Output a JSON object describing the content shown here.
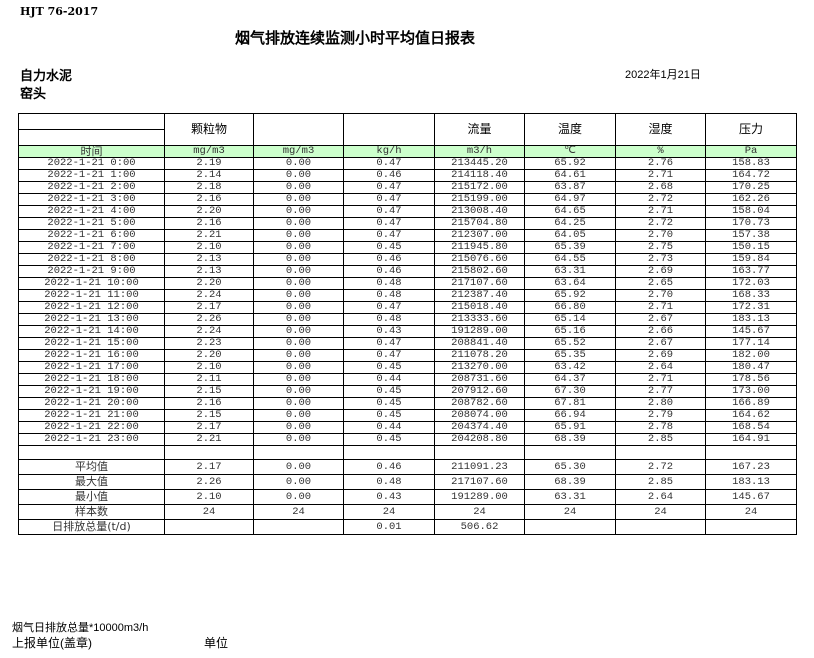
{
  "standard": "HJT 76-2017",
  "title": "烟气排放连续监测小时平均值日报表",
  "company": "自力水泥",
  "unit_name": "窑头",
  "date": "2022年1月21日",
  "table": {
    "headers": [
      "",
      "颗粒物",
      "",
      "",
      "流量",
      "温度",
      "湿度",
      "压力"
    ],
    "units": [
      "时间",
      "mg/m3",
      "mg/m3",
      "kg/h",
      "m3/h",
      "℃",
      "%",
      "Pa"
    ],
    "rows": [
      [
        "2022-1-21 0:00",
        "2.19",
        "0.00",
        "0.47",
        "213445.20",
        "65.92",
        "2.76",
        "158.83"
      ],
      [
        "2022-1-21 1:00",
        "2.14",
        "0.00",
        "0.46",
        "214118.40",
        "64.61",
        "2.71",
        "164.72"
      ],
      [
        "2022-1-21 2:00",
        "2.18",
        "0.00",
        "0.47",
        "215172.00",
        "63.87",
        "2.68",
        "170.25"
      ],
      [
        "2022-1-21 3:00",
        "2.16",
        "0.00",
        "0.47",
        "215199.00",
        "64.97",
        "2.72",
        "162.26"
      ],
      [
        "2022-1-21 4:00",
        "2.20",
        "0.00",
        "0.47",
        "213008.40",
        "64.65",
        "2.71",
        "158.04"
      ],
      [
        "2022-1-21 5:00",
        "2.16",
        "0.00",
        "0.47",
        "215704.80",
        "64.25",
        "2.72",
        "170.73"
      ],
      [
        "2022-1-21 6:00",
        "2.21",
        "0.00",
        "0.47",
        "212307.00",
        "64.05",
        "2.70",
        "157.38"
      ],
      [
        "2022-1-21 7:00",
        "2.10",
        "0.00",
        "0.45",
        "211945.80",
        "65.39",
        "2.75",
        "150.15"
      ],
      [
        "2022-1-21 8:00",
        "2.13",
        "0.00",
        "0.46",
        "215076.60",
        "64.55",
        "2.73",
        "159.84"
      ],
      [
        "2022-1-21 9:00",
        "2.13",
        "0.00",
        "0.46",
        "215802.60",
        "63.31",
        "2.69",
        "163.77"
      ],
      [
        "2022-1-21 10:00",
        "2.20",
        "0.00",
        "0.48",
        "217107.60",
        "63.64",
        "2.65",
        "172.03"
      ],
      [
        "2022-1-21 11:00",
        "2.24",
        "0.00",
        "0.48",
        "212387.40",
        "65.92",
        "2.70",
        "168.33"
      ],
      [
        "2022-1-21 12:00",
        "2.17",
        "0.00",
        "0.47",
        "215018.40",
        "66.80",
        "2.71",
        "172.31"
      ],
      [
        "2022-1-21 13:00",
        "2.26",
        "0.00",
        "0.48",
        "213333.60",
        "65.14",
        "2.67",
        "183.13"
      ],
      [
        "2022-1-21 14:00",
        "2.24",
        "0.00",
        "0.43",
        "191289.00",
        "65.16",
        "2.66",
        "145.67"
      ],
      [
        "2022-1-21 15:00",
        "2.23",
        "0.00",
        "0.47",
        "208841.40",
        "65.52",
        "2.67",
        "177.14"
      ],
      [
        "2022-1-21 16:00",
        "2.20",
        "0.00",
        "0.47",
        "211078.20",
        "65.35",
        "2.69",
        "182.00"
      ],
      [
        "2022-1-21 17:00",
        "2.10",
        "0.00",
        "0.45",
        "213270.00",
        "63.42",
        "2.64",
        "180.47"
      ],
      [
        "2022-1-21 18:00",
        "2.11",
        "0.00",
        "0.44",
        "208731.60",
        "64.37",
        "2.71",
        "178.56"
      ],
      [
        "2022-1-21 19:00",
        "2.15",
        "0.00",
        "0.45",
        "207912.60",
        "67.30",
        "2.77",
        "173.00"
      ],
      [
        "2022-1-21 20:00",
        "2.16",
        "0.00",
        "0.45",
        "208782.60",
        "67.81",
        "2.80",
        "166.89"
      ],
      [
        "2022-1-21 21:00",
        "2.15",
        "0.00",
        "0.45",
        "208074.00",
        "66.94",
        "2.79",
        "164.62"
      ],
      [
        "2022-1-21 22:00",
        "2.17",
        "0.00",
        "0.44",
        "204374.40",
        "65.91",
        "2.78",
        "168.54"
      ],
      [
        "2022-1-21 23:00",
        "2.21",
        "0.00",
        "0.45",
        "204208.80",
        "68.39",
        "2.85",
        "164.91"
      ]
    ],
    "stats": [
      [
        "平均值",
        "2.17",
        "0.00",
        "0.46",
        "211091.23",
        "65.30",
        "2.72",
        "167.23"
      ],
      [
        "最大值",
        "2.26",
        "0.00",
        "0.48",
        "217107.60",
        "68.39",
        "2.85",
        "183.13"
      ],
      [
        "最小值",
        "2.10",
        "0.00",
        "0.43",
        "191289.00",
        "63.31",
        "2.64",
        "145.67"
      ],
      [
        "样本数",
        "24",
        "24",
        "24",
        "24",
        "24",
        "24",
        "24"
      ],
      [
        "日排放总量(t/d)",
        "",
        "",
        "0.01",
        "506.62",
        "",
        "",
        ""
      ]
    ]
  },
  "footer": {
    "note": "烟气日排放总量*10000m3/h",
    "reporter": "上报单位(盖章)",
    "unit_label": "单位"
  }
}
